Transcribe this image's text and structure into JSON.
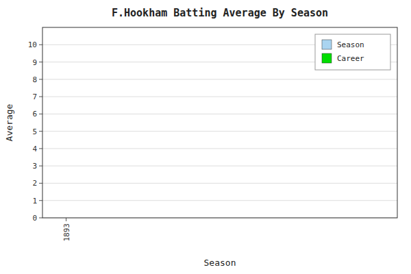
{
  "chart_data": {
    "type": "bar",
    "title": "F.Hookham Batting Average By Season",
    "xlabel": "Season",
    "ylabel": "Average",
    "x": [
      1893
    ],
    "series": [
      {
        "name": "Season",
        "color": "#aad4f0",
        "values": [
          0
        ]
      },
      {
        "name": "Career",
        "color": "#00dd00",
        "values": [
          0
        ]
      }
    ],
    "xlim": [
      1892.5,
      1900
    ],
    "xticks": [
      1893
    ],
    "ylim": [
      0,
      11
    ],
    "yticks": [
      0,
      1,
      2,
      3,
      4,
      5,
      6,
      7,
      8,
      9,
      10
    ],
    "grid": true,
    "legend": "upper right"
  }
}
